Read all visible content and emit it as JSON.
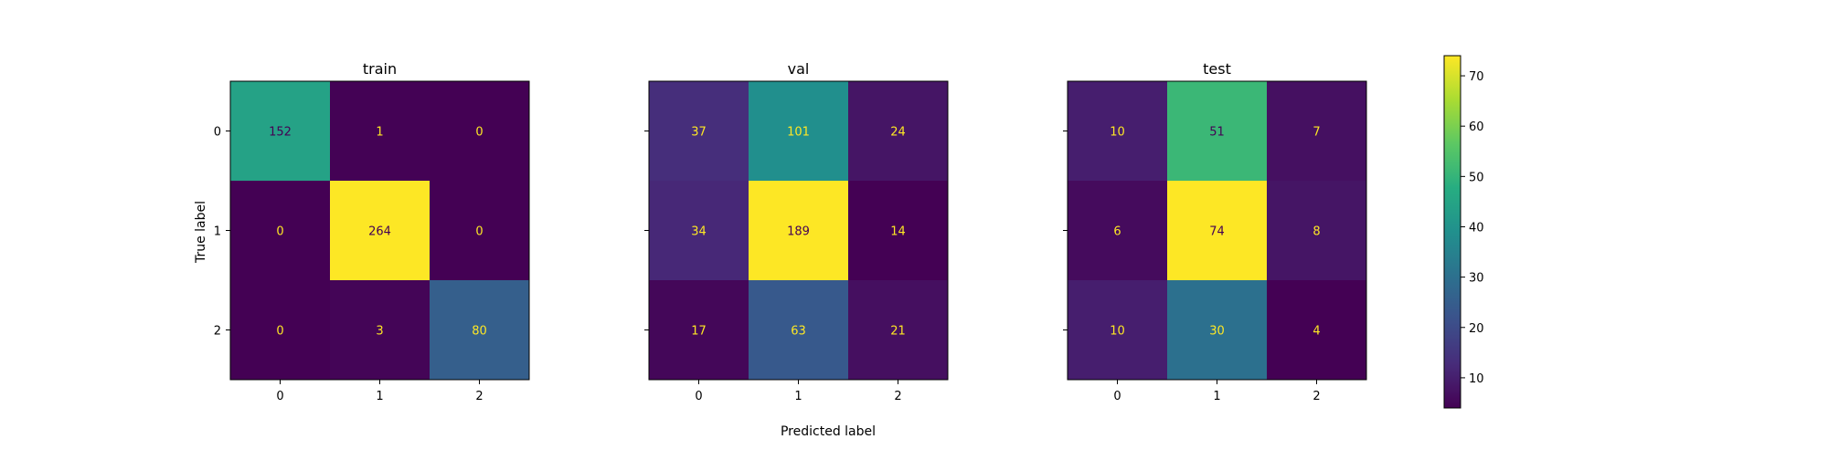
{
  "chart_data": {
    "type": "heatmap",
    "figure_xlabel": "Predicted label",
    "figure_ylabel": "True label",
    "tick_labels": [
      "0",
      "1",
      "2"
    ],
    "colormap": "viridis",
    "colorbar": {
      "range": [
        4,
        74
      ],
      "ticks": [
        10,
        20,
        30,
        40,
        50,
        60,
        70
      ]
    },
    "panels": [
      {
        "title": "train",
        "matrix": [
          [
            152,
            1,
            0
          ],
          [
            0,
            264,
            0
          ],
          [
            0,
            3,
            80
          ]
        ],
        "vmin": 0,
        "vmax": 264,
        "show_ytick_labels": true
      },
      {
        "title": "val",
        "matrix": [
          [
            37,
            101,
            24
          ],
          [
            34,
            189,
            14
          ],
          [
            17,
            63,
            21
          ]
        ],
        "vmin": 14,
        "vmax": 189,
        "show_ytick_labels": false
      },
      {
        "title": "test",
        "matrix": [
          [
            10,
            51,
            7
          ],
          [
            6,
            74,
            8
          ],
          [
            10,
            30,
            4
          ]
        ],
        "vmin": 4,
        "vmax": 74,
        "show_ytick_labels": false
      }
    ],
    "grid": false
  }
}
